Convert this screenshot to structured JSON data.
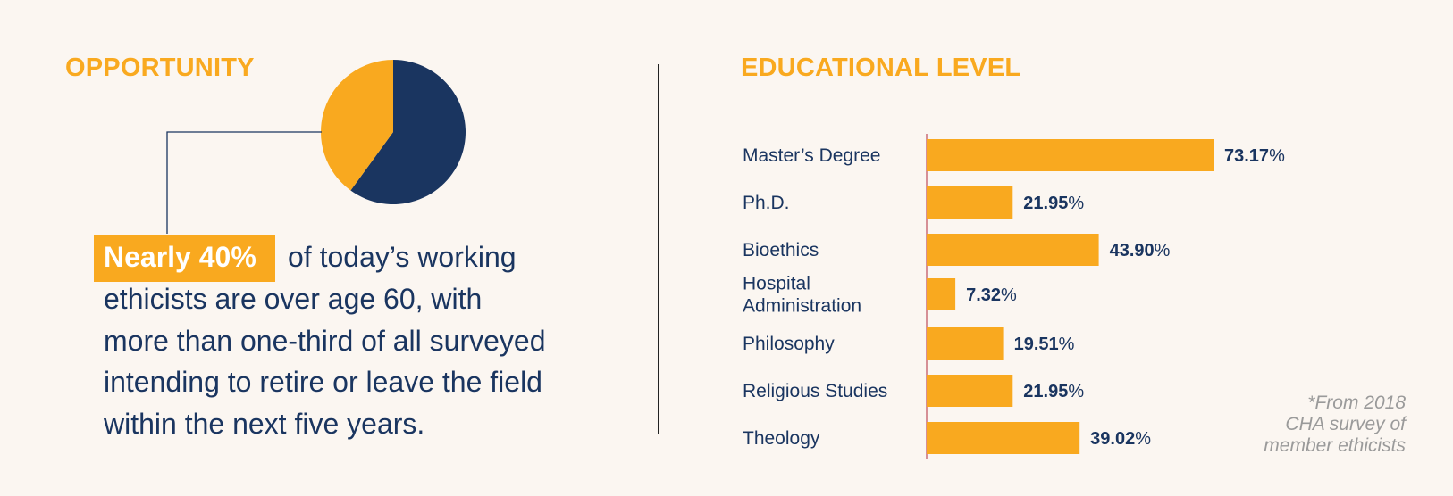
{
  "left": {
    "title": "OPPORTUNITY",
    "highlight": "Nearly 40%",
    "text_lines": [
      "of today’s working",
      "ethicists are over age 60, with",
      "more than one-third of all surveyed",
      "intending to retire or leave the field",
      "within the next five years."
    ]
  },
  "right": {
    "title": "EDUCATIONAL LEVEL"
  },
  "footnote": {
    "lines": [
      "*From 2018",
      "CHA survey of",
      "member ethicists"
    ]
  },
  "colors": {
    "accent": "#f9a91f",
    "navy": "#1a3560",
    "background": "#fbf6f1",
    "axis": "#b0283a",
    "footnote": "#9a9a9a"
  },
  "chart_data": [
    {
      "type": "pie",
      "title": "",
      "categories": [
        "",
        ""
      ],
      "values": [
        40,
        60
      ],
      "colors": [
        "#f9a91f",
        "#1a3560"
      ]
    },
    {
      "type": "bar",
      "orientation": "horizontal",
      "title": "EDUCATIONAL LEVEL",
      "categories": [
        "Master’s Degree",
        "Ph.D.",
        "Bioethics",
        "Hospital Administration",
        "Philosophy",
        "Religious Studies",
        "Theology"
      ],
      "category_label_lines": [
        [
          "Master’s Degree"
        ],
        [
          "Ph.D."
        ],
        [
          "Bioethics"
        ],
        [
          "Hospital",
          "Administration"
        ],
        [
          "Philosophy"
        ],
        [
          "Religious Studies"
        ],
        [
          "Theology"
        ]
      ],
      "values": [
        73.17,
        21.95,
        43.9,
        7.32,
        19.51,
        21.95,
        39.02
      ],
      "value_labels": [
        "73.17",
        "21.95",
        "43.90",
        "7.32",
        "19.51",
        "21.95",
        "39.02"
      ],
      "unit": "%",
      "xlim": [
        0,
        100
      ],
      "grid": false,
      "bar_color": "#f9a91f"
    }
  ]
}
